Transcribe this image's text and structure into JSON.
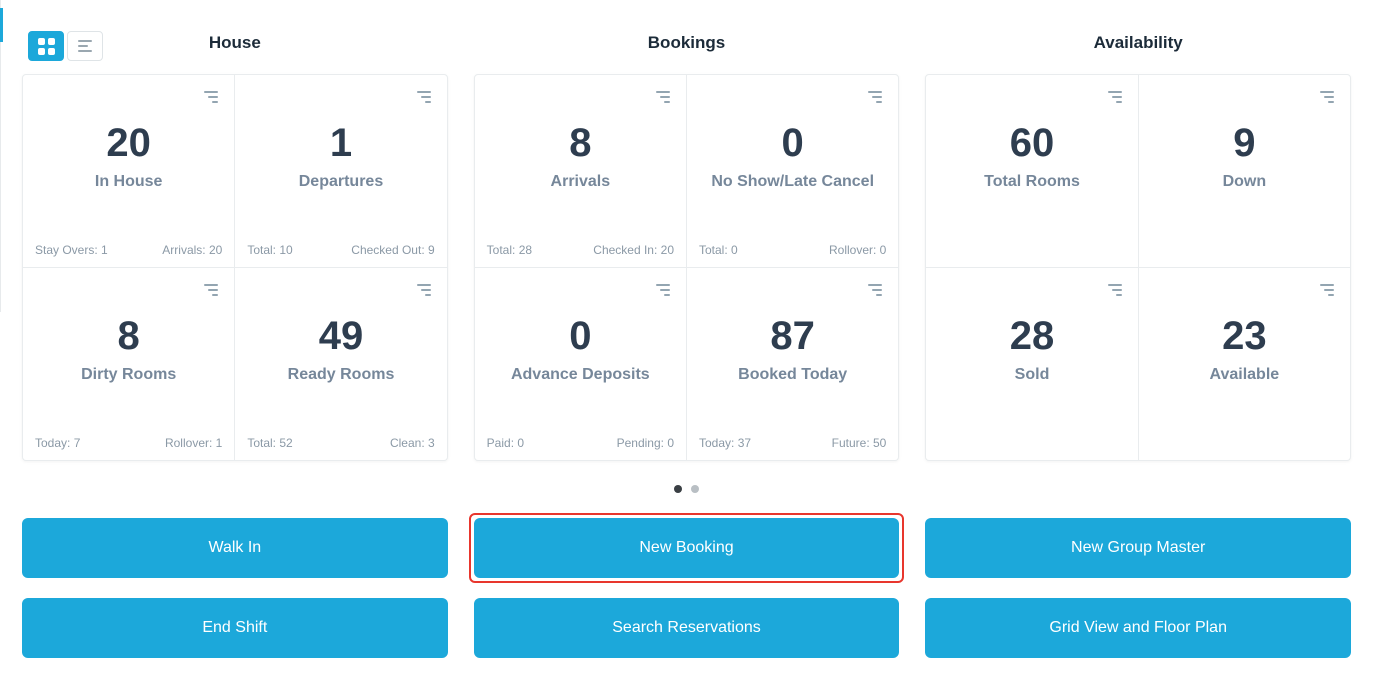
{
  "toolbar": {
    "grid_view_active": true
  },
  "groups": [
    {
      "title": "House",
      "cards": [
        {
          "value": "20",
          "label": "In House",
          "footer_left": "Stay Overs: 1",
          "footer_right": "Arrivals: 20"
        },
        {
          "value": "1",
          "label": "Departures",
          "footer_left": "Total: 10",
          "footer_right": "Checked Out: 9"
        },
        {
          "value": "8",
          "label": "Dirty Rooms",
          "footer_left": "Today: 7",
          "footer_right": "Rollover: 1"
        },
        {
          "value": "49",
          "label": "Ready Rooms",
          "footer_left": "Total: 52",
          "footer_right": "Clean: 3"
        }
      ]
    },
    {
      "title": "Bookings",
      "cards": [
        {
          "value": "8",
          "label": "Arrivals",
          "footer_left": "Total: 28",
          "footer_right": "Checked In: 20"
        },
        {
          "value": "0",
          "label": "No Show/Late Cancel",
          "footer_left": "Total: 0",
          "footer_right": "Rollover: 0"
        },
        {
          "value": "0",
          "label": "Advance Deposits",
          "footer_left": "Paid: 0",
          "footer_right": "Pending: 0"
        },
        {
          "value": "87",
          "label": "Booked Today",
          "footer_left": "Today: 37",
          "footer_right": "Future: 50"
        }
      ]
    },
    {
      "title": "Availability",
      "cards": [
        {
          "value": "60",
          "label": "Total Rooms"
        },
        {
          "value": "9",
          "label": "Down"
        },
        {
          "value": "28",
          "label": "Sold"
        },
        {
          "value": "23",
          "label": "Available"
        }
      ]
    }
  ],
  "carousel": {
    "dot_count": 2,
    "active_index": 0
  },
  "actions": {
    "row1": [
      {
        "label": "Walk In",
        "highlighted": false
      },
      {
        "label": "New Booking",
        "highlighted": true
      },
      {
        "label": "New Group Master",
        "highlighted": false
      }
    ],
    "row2": [
      {
        "label": "End Shift",
        "highlighted": false
      },
      {
        "label": "Search Reservations",
        "highlighted": false
      },
      {
        "label": "Grid View and Floor Plan",
        "highlighted": false
      }
    ]
  },
  "colors": {
    "accent": "#1ca8da",
    "highlight_red": "#e8362d",
    "number_dark": "#2e3d4f"
  }
}
